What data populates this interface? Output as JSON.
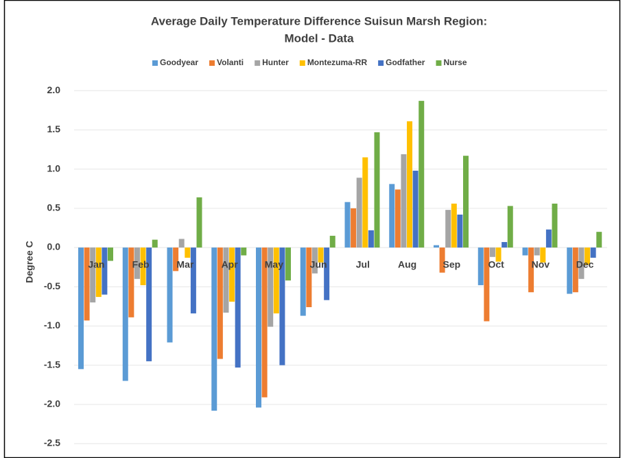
{
  "chart_data": {
    "type": "bar",
    "title": "Average Daily Temperature Difference Suisun Marsh Region:",
    "subtitle": "Model - Data",
    "y_label": "Degree C",
    "categories": [
      "Jan",
      "Feb",
      "Mar",
      "Apr",
      "May",
      "Jun",
      "Jul",
      "Aug",
      "Sep",
      "Oct",
      "Nov",
      "Dec"
    ],
    "series": [
      {
        "name": "Goodyear",
        "color": "#5b9bd5",
        "values": [
          -1.55,
          -1.7,
          -1.21,
          -2.08,
          -2.04,
          -0.87,
          0.58,
          0.81,
          0.03,
          -0.48,
          -0.1,
          -0.59
        ]
      },
      {
        "name": "Volanti",
        "color": "#ed7d31",
        "values": [
          -0.93,
          -0.89,
          -0.3,
          -1.42,
          -1.91,
          -0.76,
          0.5,
          0.74,
          -0.32,
          -0.94,
          -0.57,
          -0.57
        ]
      },
      {
        "name": "Hunter",
        "color": "#a5a5a5",
        "values": [
          -0.7,
          -0.4,
          0.11,
          -0.83,
          -1.01,
          -0.33,
          0.89,
          1.19,
          0.48,
          -0.12,
          -0.1,
          -0.4
        ]
      },
      {
        "name": "Montezuma-RR",
        "color": "#ffc000",
        "values": [
          -0.63,
          -0.48,
          -0.13,
          -0.69,
          -0.84,
          -0.19,
          1.15,
          1.61,
          0.56,
          -0.18,
          -0.19,
          -0.22
        ]
      },
      {
        "name": "Godfather",
        "color": "#4472c4",
        "values": [
          -0.6,
          -1.45,
          -0.84,
          -1.53,
          -1.5,
          -0.67,
          0.22,
          0.98,
          0.42,
          0.07,
          0.23,
          -0.13
        ]
      },
      {
        "name": "Nurse",
        "color": "#70ad47",
        "values": [
          -0.17,
          0.1,
          0.64,
          -0.1,
          -0.42,
          0.15,
          1.47,
          1.87,
          1.17,
          0.53,
          0.56,
          0.2
        ]
      }
    ],
    "ylim": [
      -2.65,
      2.1
    ],
    "yticks": [
      {
        "value": 2,
        "label": "2.0"
      },
      1.5,
      {
        "value": 1,
        "label": "1.0"
      },
      0.5,
      {
        "value": 0,
        "label": "0.0"
      },
      -0.5,
      {
        "value": -1,
        "label": "-1.0"
      },
      -1.5,
      {
        "value": -2,
        "label": "-2.0"
      },
      -2.5
    ],
    "grid": true,
    "legend": "top"
  }
}
